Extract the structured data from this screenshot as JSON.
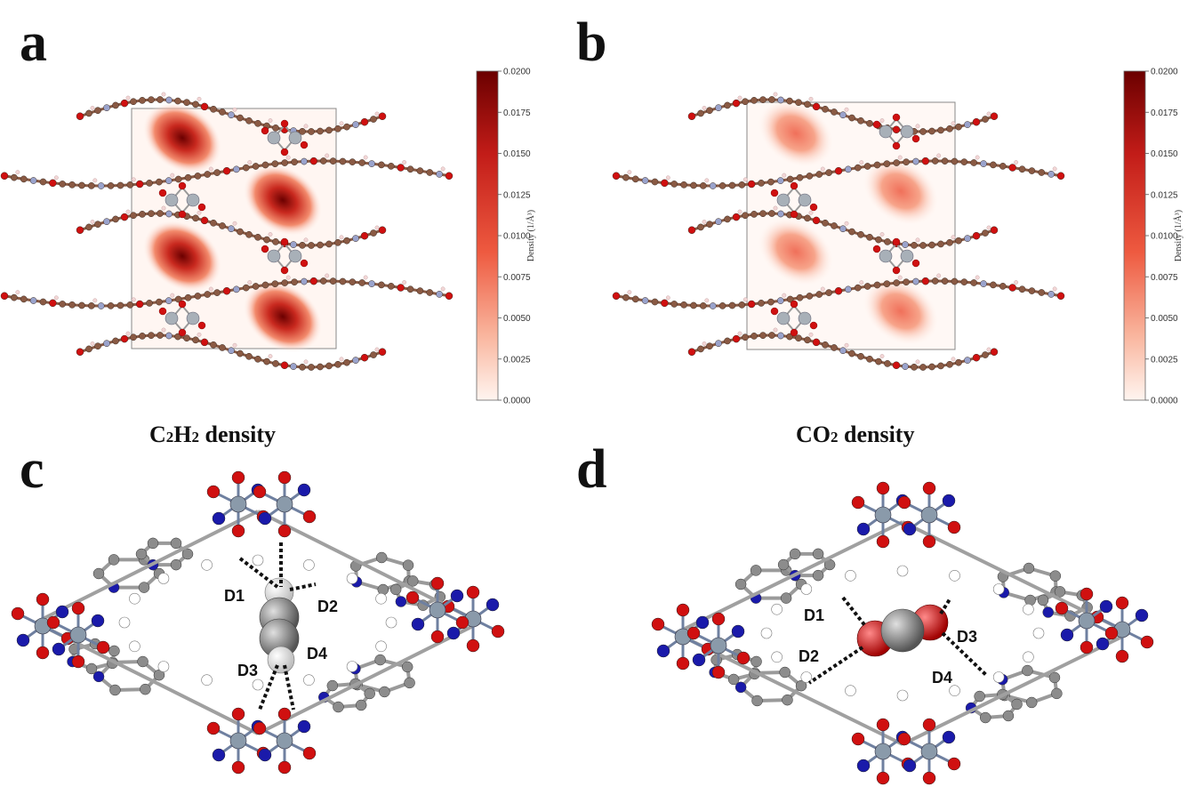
{
  "panels": {
    "a": {
      "letter": "a",
      "caption_parts": [
        "C",
        "2",
        "H",
        "2",
        " density"
      ]
    },
    "b": {
      "letter": "b",
      "caption_parts": [
        "CO",
        "2",
        " density"
      ]
    },
    "c": {
      "letter": "c",
      "distance_labels": [
        "D1",
        "D2",
        "D3",
        "D4"
      ]
    },
    "d": {
      "letter": "d",
      "distance_labels": [
        "D1",
        "D2",
        "D3",
        "D4"
      ]
    }
  },
  "colorbar": {
    "label": "Density (1/Å³)",
    "ticks": [
      "0.0200",
      "0.0175",
      "0.0150",
      "0.0125",
      "0.0100",
      "0.0075",
      "0.0050",
      "0.0025",
      "0.0000"
    ],
    "colors": {
      "high": "#6b0000",
      "mid": "#e8503a",
      "low": "#fff5f0"
    }
  },
  "atom_colors": {
    "carbon_framework": "#8a5a44",
    "carbon_model": "#8c8c8c",
    "oxygen": "#d01010",
    "nitrogen": "#1a1aaa",
    "nitrogen_light": "#9aa3cc",
    "metal": "#8a9aaa",
    "hydrogen": "#ffffff"
  }
}
